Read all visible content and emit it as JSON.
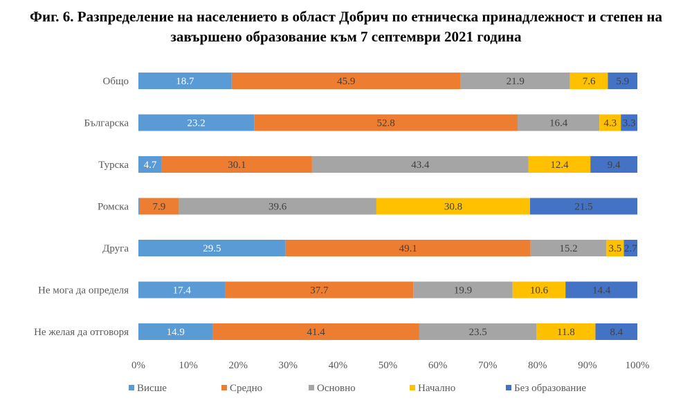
{
  "chart_data": {
    "type": "bar",
    "orientation": "horizontal",
    "stacked": "percent",
    "title_line1": "Фиг. 6. Разпределение на населението в област Добрич по етническа принадлежност и степен на",
    "title_line2": "завършено образование към 7 септември 2021 година",
    "categories": [
      "Общо",
      "Българска",
      "Турска",
      "Ромска",
      "Друга",
      "Не мога да определя",
      "Не желая да отговоря"
    ],
    "series": [
      {
        "name": "Висше",
        "color": "#5b9bd5",
        "label_color": "#ffffff",
        "values": [
          18.7,
          23.2,
          4.7,
          0.2,
          29.5,
          17.4,
          14.9
        ]
      },
      {
        "name": "Средно",
        "color": "#ed7d31",
        "label_color": "#404040",
        "values": [
          45.9,
          52.8,
          30.1,
          7.9,
          49.1,
          37.7,
          41.4
        ]
      },
      {
        "name": "Основно",
        "color": "#a5a5a5",
        "label_color": "#404040",
        "values": [
          21.9,
          16.4,
          43.4,
          39.6,
          15.2,
          19.9,
          23.5
        ]
      },
      {
        "name": "Начално",
        "color": "#ffc000",
        "label_color": "#404040",
        "values": [
          7.6,
          4.3,
          12.4,
          30.8,
          3.5,
          10.6,
          11.8
        ]
      },
      {
        "name": "Без образование",
        "color": "#4472c4",
        "label_color": "#404040",
        "values": [
          5.9,
          3.3,
          9.4,
          21.5,
          2.7,
          14.4,
          8.4
        ]
      }
    ],
    "xlim": [
      0,
      100
    ],
    "xticks": [
      "0%",
      "10%",
      "20%",
      "30%",
      "40%",
      "50%",
      "60%",
      "70%",
      "80%",
      "90%",
      "100%"
    ],
    "grid": false,
    "legend_position": "bottom"
  }
}
